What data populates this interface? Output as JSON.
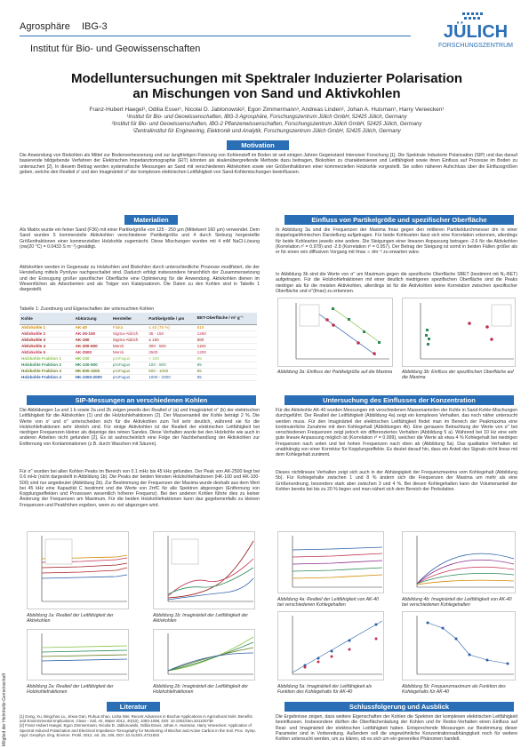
{
  "header": {
    "project": "Agrosphäre",
    "unit": "IBG-3",
    "institute": "Institut für Bio- und Geowissenschaften"
  },
  "logo": {
    "name": "JÜLICH",
    "subtitle": "FORSCHUNGSZENTRUM",
    "color": "#2a6fb5"
  },
  "side_text": "Mitglied der Helmholtz-Gemeinschaft",
  "title_line1": "Modelluntersuchungen mit Spektraler Induzierter Polarisation",
  "title_line2": "an Mischungen von Sand und Aktivkohlen",
  "authors": "Franz-Hubert Haegel¹, Odilia Esser¹, Nicolai D. Jablonowski², Egon Zimmermann³, Andreas Linden¹, Johan A. Huisman¹, Harry Vereecken¹",
  "affiliations": [
    "¹Institut für Bio- und Geowissenschaften, IBG-3 Agrosphäre, Forschungszentrum Jülich GmbH, 52425 Jülich, Germany",
    "²Institut für Bio- und Geowissenschaften, IBG-2 Pflanzenwissenschaften, Forschungszentrum Jülich GmbH, 52425 Jülich, Germany",
    "³Zentralinstitut für Engineering, Elektronik und Analytik, Forschungszentrum Jülich GmbH, 52425 Jülich, Germany"
  ],
  "motivation": {
    "heading": "Motivation",
    "text": "Die Anwendung von Biokohlen als Mittel zur Bodenverbesserung und zur langfristigen Fixierung von Kohlenstoff im Boden ist seit einigen Jahren Gegenstand intensiver Forschung [1]. Die Spektrale Induzierte Polarisation (SIP) und das darauf basierende bildgebende Verfahren der Elektrischen Impedanztomographie (EIT) könnten als skalenübergreifende Methode dazu beitragen, Biokohlen zu charakterisieren und Leitfähigkeit sowie ihren Einfluss auf Prozesse im Boden zu untersuchen [2]. In diesem Beitrag werden systematische Messungen an Sand mit verschiedenen Aktivkohlen sowie vier Größenfraktionen einer kommerziellen Holzkohle vorgestellt. Sie sollen näheren Aufschluss über die Einflussgrößen geben, welche den Realteil σ' und den Imaginärteil σ'' der komplexen elektrischen Leitfähigkeit von Sand-Kohlemischungen beeinflussen."
  },
  "materials": {
    "heading": "Materialien",
    "text1": "Als Matrix wurde ein feiner Sand (F36) mit einer Partikelgröße von 125 - 250 µm (Mittelwert 160 µm) verwendet. Dem Sand wurden 5 kommerzielle Aktivkohlen verschiedener Partikelgröße und 4 durch Siebung hergestellte Größenfraktionen einer kommerziellen Holzkohle zugemischt. Diese Mischungen wurden mit 4 mM NaCl-Lösung (σw(20 °C) = 0.0433 S m⁻¹) gesättigt.",
    "text2": "Aktivkohlen werden in Gegensatz zu Holzkohlen und Biokohlen durch unterschiedliche Prozesse modifiziert, die der Herstellung mittels Pyrolyse nachgeschaltet sind. Dadurch erfolgt insbesondere hinsichtlich der Zusammensetzung und der Erzeugung großer spezifischer Oberfläche eine Optimierung für die Anwendung. Aktivkohlen dienen im Wesentlichen als Adsorbenten und als Träger von Katalysatoren. Die Daten zu den Kohlen sind in Tabelle 1 dargestellt.",
    "table_caption": "Tabelle 1: Zuordnung und Eigenschaften der untersuchten Kohlen",
    "columns": [
      "Kohle",
      "Abkürzung",
      "Hersteller",
      "Partikelgröße / µm",
      "BET-Oberfläche / m² g⁻¹"
    ],
    "rows": [
      {
        "kohle": "Aktivkohle 1",
        "abk": "AK-40",
        "hersteller": "Fluka",
        "groesse": "≤ 40 (75 %)",
        "bet": "610",
        "color": "#d08a00"
      },
      {
        "kohle": "Aktivkohle 2",
        "abk": "AK-35-150",
        "hersteller": "Sigma-Aldrich",
        "groesse": "35 - 150",
        "bet": "1260",
        "color": "#c03050"
      },
      {
        "kohle": "Aktivkohle 3",
        "abk": "AK-150",
        "hersteller": "Sigma-Aldrich",
        "groesse": "≤ 150",
        "bet": "880",
        "color": "#9a1a1a"
      },
      {
        "kohle": "Aktivkohle 4",
        "abk": "AK-300-500",
        "hersteller": "Merck",
        "groesse": "300 - 500",
        "bet": "1150",
        "color": "#b22222"
      },
      {
        "kohle": "Aktivkohle 5",
        "abk": "AK-2500",
        "hersteller": "Merck",
        "groesse": "2500",
        "bet": "1200",
        "color": "#c03050"
      },
      {
        "kohle": "Holzkohle Fraktion 1",
        "abk": "HK-100",
        "hersteller": "proFagus",
        "groesse": "< 100",
        "bet": "85",
        "color": "#8bc34a"
      },
      {
        "kohle": "Holzkohle Fraktion 2",
        "abk": "HK-100-500",
        "hersteller": "proFagus",
        "groesse": "100 - 500",
        "bet": "85",
        "color": "#2e8b57"
      },
      {
        "kohle": "Holzkohle Fraktion 3",
        "abk": "HK-500-1000",
        "hersteller": "proFagus",
        "groesse": "500 - 1000",
        "bet": "85",
        "color": "#6b7a1e"
      },
      {
        "kohle": "Holzkohle Fraktion 4",
        "abk": "HK-1000-2000",
        "hersteller": "proFagus",
        "groesse": "1000 - 2000",
        "bet": "85",
        "color": "#2a5ea8"
      }
    ]
  },
  "einfluss": {
    "heading": "Einfluss von Partikelgröße und spezifischer Oberfläche",
    "text": "In Abbildung 3a sind die Frequenzen der Maxima fmax gegen den mittleren Partikeldurchmesser dm in einer doppelogarithmischen Darstellung aufgetragen. Für beide Kohlearten lässt sich eine Korrelation erkennen, allerdings für beide Kohlearten jeweils eine andere. Die Steigungen einer linearen Anpassung betragen -2.6 für die Aktivkohlen (Korrelation r² = 0.978) und -2.8 (Korrelation r² = 0.957). Der Betrag der Steigung ist somit in beiden Fällen größer als er für einen rein diffusiven Vorgang mit fmax ∝ dm⁻² zu erwarten wäre.",
    "text2": "In Abbildung 3b sind die Werte von σ'' am Maximum gegen die spezifische Oberfläche SBET (bestimmt mit N₂-BET) aufgetragen. Für die Holzkohlefraktionen mit einer deutlich niedrigeren spezifischen Oberfläche sind die Peaks niedriger als für die meisten Aktivkohlen, allerdings ist für die Aktivkohlen keine Korrelation zwischen spezifischer Oberfläche und σ''(fmax) zu erkennen.",
    "cap3a": "Abbildung 3a: Einfluss der Partikelgröße auf die Maxima",
    "cap3b": "Abbildung 3b: Einfluss der spezifischen Oberfläche auf die Maxima"
  },
  "sip": {
    "heading": "SIP-Messungen an verschiedenen Kohlen",
    "text1": "Die Abbildungen 1a und 1 b sowie 2a und 2b zeigen jeweils den Realteil σ' (a) und Imaginärteil σ'' (b) der elektrischen Leitfähigkeit für die Aktivkohlen (1) und die Holzkohlefraktionen (2). Der Massenanteil der Kohle beträgt 2 %. Die Werte von σ' und σ'' unterscheiden sich für die Aktivkohlen zum Teil sehr deutlich, während sie für die Holzkohlefraktionen sehr ähnlich sind. Für einige Aktivkohlen ist der Realteil der elektrischen Leitfähigkeit bei niedrigen Frequenzen kleiner als diejenige des reinen Sandes. Diese Verhalten wurde bei den Holzkohle wie auch in anderen Arbeiten nicht gefunden [2]. Es ist wahrscheinlich eine Folge der Nachbehandlung der Aktivkohlen zur Entfernung von Kontaminationen (z.B. durch Waschen mit Säuren).",
    "text2": "Für σ'' wurden bei allen Kohlen Peaks im Bereich von 0.1 mHz bis 45 kHz gefunden. Der Peak von AK-2500 liegt bei 0.6 mHz (nicht dargestellt in Abbildung 1b). Die Peaks der beiden feinsten Holzkohlefraktionen (HK-100 und HK-100-500) sind nur angedeutet (Abbildung 2b). Zur Bestimmung der Frequenzen der Maxima wurde deshalb aus dem Wert bei 45 kHz eine Kapazität C bestimmt und die Werte von 2πfC für alle Spektren abgezogen (Entfernung von Kopplungseffekten und Prozessen wesentlich höherer Frequenz). Bei den anderen Kohlen führte dies zu keiner Änderung der Frequenzen am Maximum. Für die beiden Holzkohlefraktionen kann das gegebenenfalls zu kleinen Frequenzen und Peakhöhen ergeben, wenn zu viel abgezogen wird.",
    "cap1a": "Abbildung 1a: Realteil der Leitfähigkeit der Aktivkohlen",
    "cap1b": "Abbildung 1b: Imaginärteil der Leitfähigkeit der Aktivkohlen",
    "cap2a": "Abbildung 2a: Realteil der Leitfähigkeit der Holzkohlefraktionen",
    "cap2b": "Abbildung 2b: Imaginärteil der Leitfähigkeit der Holzkohlefraktionen"
  },
  "konzentration": {
    "heading": "Untersuchung des Einflusses der Konzentration",
    "text1": "Für die Aktivkohle AK-40 wurden Messungen mit verschiedenen Massenanteilen der Kohle in Sand-Kohle-Mischungen durchgeführt. Der Realteil der Leitfähigkeit (Abbildung 4a) zeigt ein komplexes Verhalten, das noch näher untersucht werden muss. Für den Imaginärteil der elektrischen Leitfähigkeit findet man im Bereich der Peakmaxima eine kontinuierliche Zunahme mit dem Kohlegehalt (Abbildungen 4b). Eine genauere Betrachtung der Werte von σ'' bei verschiedenen Frequenzen zeigt jedoch ein differenziertes Verhalten (Abbildung 5 a). Während bei 10 Hz eine sehr gute lineare Anpassung möglich ist (Korrelation r² = 0.999), weichen die Werte ab etwa 4 % Kohlegehalt bei niedrigen Frequenzen nach unten und bei hohen Frequenzen nach oben ab (Abbildung 5a). Das qualitative Verhalten ist unabhängig von einer Korrektur für Kopplungseffekte. Es deutet darauf hin, dass ein Anteil des Signals nicht linear mit dem Kohlegehalt zunimmt.",
    "text2": "Dieses nichtlineare Verhalten zeigt sich auch in der Abhängigkeit der Frequenzmaxima vom Kohlegehalt (Abbildung 5b). Für Kohlegehalte zwischen 1 und 8 % ändern sich die Frequenzen der Maxima um mehr als eine Größenordnung, besonders stark aber zwischen 3 und 4 %. Bei diesen Kohlegehalten kann der Volumenanteil der Kohlen bereits bei bis zu 20 % liegen und man nähert sich dem Bereich der Perkolation.",
    "cap4a": "Abbildung 4a: Realteil der Leitfähigkeit von AK-40 bei verschiedenen Kohlegehalten",
    "cap4b": "Abbildung 4b: Imaginärteil der Leitfähigkeit von AK-40 bei verschiedenen Kohlegehalten",
    "cap5a": "Abbildung 5a: Imaginärteil der Leitfähigkeit als Funktion des Kohlegehalts für AK-40",
    "cap5b": "Abbildung 5b: Frequenzmaximum als Funktion des Kohlegehalts für AK-40"
  },
  "literatur": {
    "heading": "Literatur",
    "refs": [
      "[1] Gong, Xu, Bingchao Lu, Jinwa Gan, Ruhua Shao, Lisha Wei: Recent Advances in Biochar Applications in Agricultural Soils: Benefits and Environmental Implications. Clean - Soil, Air, Water 2012, 40(10), 1093-1098, DOI: 10.1002/clen.201100738",
      "[2] Franz-Hubert Haegel, Egon Zimmermann, Nicolai D. Jablonowski, Odilia Esser, Johan A. Huisman, Harry Vereecken: Application of Spectral Induced Polarization and Electrical Impedance Tomography for Monitoring of Biochar and Active Carbon in the Soil. Proc. Symp. Appl. Geophys. Eng. Environ. Probl. 2012, vol. 25, 106, DOI: 10.4133/1.4721603"
    ]
  },
  "ausblick": {
    "heading": "Schlussfolgerung und Ausblick",
    "text": "Die Ergebnisse zeigen, dass weitere Eigenschaften der Kohlen die Spektren der komplexen elektrischen Leitfähigkeit beeinflussen. Insbesondere dürften die Oberflächenladung der Kohlen und ihr Redox-Verhalten einen Einfluss auf Real- und Imaginärteil der elektrischen Leitfähigkeit haben. Entsprechende Messungen zur Bestimmung dieser Parameter sind in Vorbereitung. Außerdem soll die ungewöhnliche Konzentrationsabhängigkeit noch für weitere Kohlen untersucht werden, um zu klären, ob es sich um ein generelles Phänomen handelt."
  },
  "colors": {
    "accent": "#2a6fb5",
    "text": "#333333"
  }
}
